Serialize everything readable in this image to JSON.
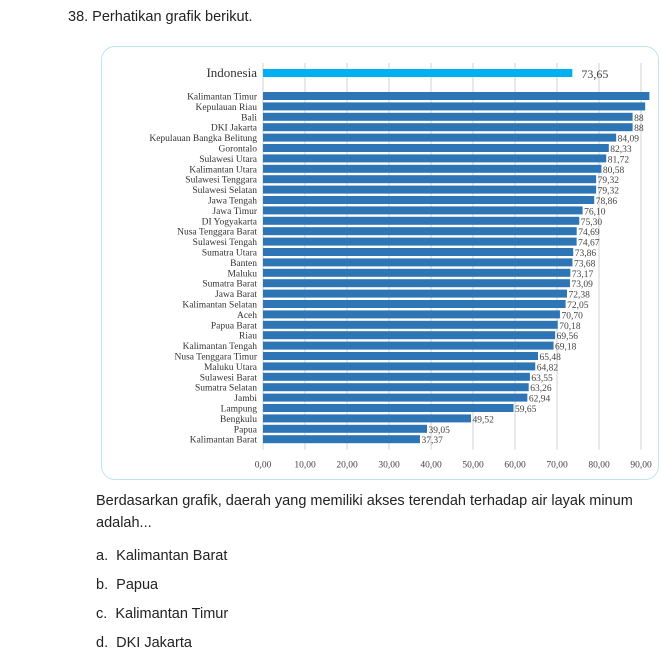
{
  "question": "38. Perhatikan grafik berikut.",
  "prompt_line1": "Berdasarkan grafik, daerah yang memiliki akses terendah terhadap air layak minum",
  "prompt_line2": "adalah...",
  "options": [
    {
      "letter": "a.",
      "text": "Kalimantan Barat"
    },
    {
      "letter": "b.",
      "text": "Papua"
    },
    {
      "letter": "c.",
      "text": "Kalimantan Timur"
    },
    {
      "letter": "d.",
      "text": "DKI Jakarta"
    }
  ],
  "colors": {
    "highlight": "#00b0f0",
    "bars": "#2e75b6",
    "card_border": "#bfe3f0"
  },
  "chart_data": {
    "type": "bar",
    "orientation": "horizontal",
    "xlim": [
      0,
      90
    ],
    "ticks": [
      "0,00",
      "10,00",
      "20,00",
      "30,00",
      "40,00",
      "50,00",
      "60,00",
      "70,00",
      "80,00",
      "90,00"
    ],
    "grid": true,
    "highlight": {
      "category": "Indonesia",
      "value": 73.65,
      "label": "73,65"
    },
    "categories": [
      "Kalimantan Timur",
      "Kepulauan Riau",
      "Bali",
      "DKI Jakarta",
      "Kepulauan Bangka Belitung",
      "Gorontalo",
      "Sulawesi Utara",
      "Kalimantan Utara",
      "Sulawesi Tenggara",
      "Sulawesi Selatan",
      "Jawa Tengah",
      "Jawa Timur",
      "DI Yogyakarta",
      "Nusa Tenggara Barat",
      "Sulawesi Tengah",
      "Sumatra Utara",
      "Banten",
      "Maluku",
      "Sumatra Barat",
      "Jawa Barat",
      "Kalimantan Selatan",
      "Aceh",
      "Papua Barat",
      "Riau",
      "Kalimantan Tengah",
      "Nusa Tenggara Timur",
      "Maluku Utara",
      "Sulawesi Barat",
      "Sumatra Selatan",
      "Jambi",
      "Lampung",
      "Bengkulu",
      "Papua",
      "Kalimantan Barat"
    ],
    "values": [
      92,
      91,
      88,
      88,
      84.09,
      82.33,
      81.72,
      80.58,
      79.32,
      79.32,
      78.86,
      76.1,
      75.3,
      74.69,
      74.67,
      73.86,
      73.68,
      73.17,
      73.09,
      72.38,
      72.05,
      70.7,
      70.18,
      69.56,
      69.18,
      65.48,
      64.82,
      63.55,
      63.26,
      62.94,
      59.65,
      49.52,
      39.05,
      37.37
    ],
    "labels": [
      "",
      "",
      "88",
      "88",
      "84,09",
      "82,33",
      "81,72",
      "80,58",
      "79,32",
      "79,32",
      "78,86",
      "76,10",
      "75,30",
      "74,69",
      "74,67",
      "73,86",
      "73,68",
      "73,17",
      "73,09",
      "72,38",
      "72,05",
      "70,70",
      "70,18",
      "69,56",
      "69,18",
      "65,48",
      "64,82",
      "63,55",
      "63,26",
      "62,94",
      "59,65",
      "49,52",
      "39,05",
      "37,37"
    ]
  }
}
